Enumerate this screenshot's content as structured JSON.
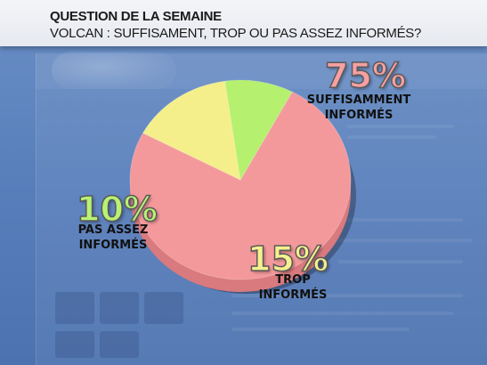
{
  "header": {
    "title": "QUESTION DE LA SEMAINE",
    "subtitle": "VOLCAN : SUFFISAMENT, TROP OU PAS ASSEZ INFORMÉS?"
  },
  "colors": {
    "suffisamment": "#f4999b",
    "suffisamment_dark": "#d97a7e",
    "trop": "#f4ef8a",
    "trop_dark": "#d8cc62",
    "pas_assez": "#b5f06e",
    "pas_assez_dark": "#8fcf4e",
    "pct_suffisamment": "#f6a0a2",
    "pct_trop": "#f6f08f",
    "pct_pas_assez": "#b8f273"
  },
  "chart_data": {
    "type": "pie",
    "title": "VOLCAN : SUFFISAMENT, TROP OU PAS ASSEZ INFORMÉS?",
    "slices": [
      {
        "label_line1": "SUFFISAMMENT",
        "label_line2": "INFORMÉS",
        "value": 75,
        "value_text": "75%",
        "color_key": "suffisamment"
      },
      {
        "label_line1": "TROP",
        "label_line2": "INFORMÉS",
        "value": 15,
        "value_text": "15%",
        "color_key": "trop"
      },
      {
        "label_line1": "PAS ASSEZ",
        "label_line2": "INFORMÉS",
        "value": 10,
        "value_text": "10%",
        "color_key": "pas_assez"
      }
    ]
  }
}
